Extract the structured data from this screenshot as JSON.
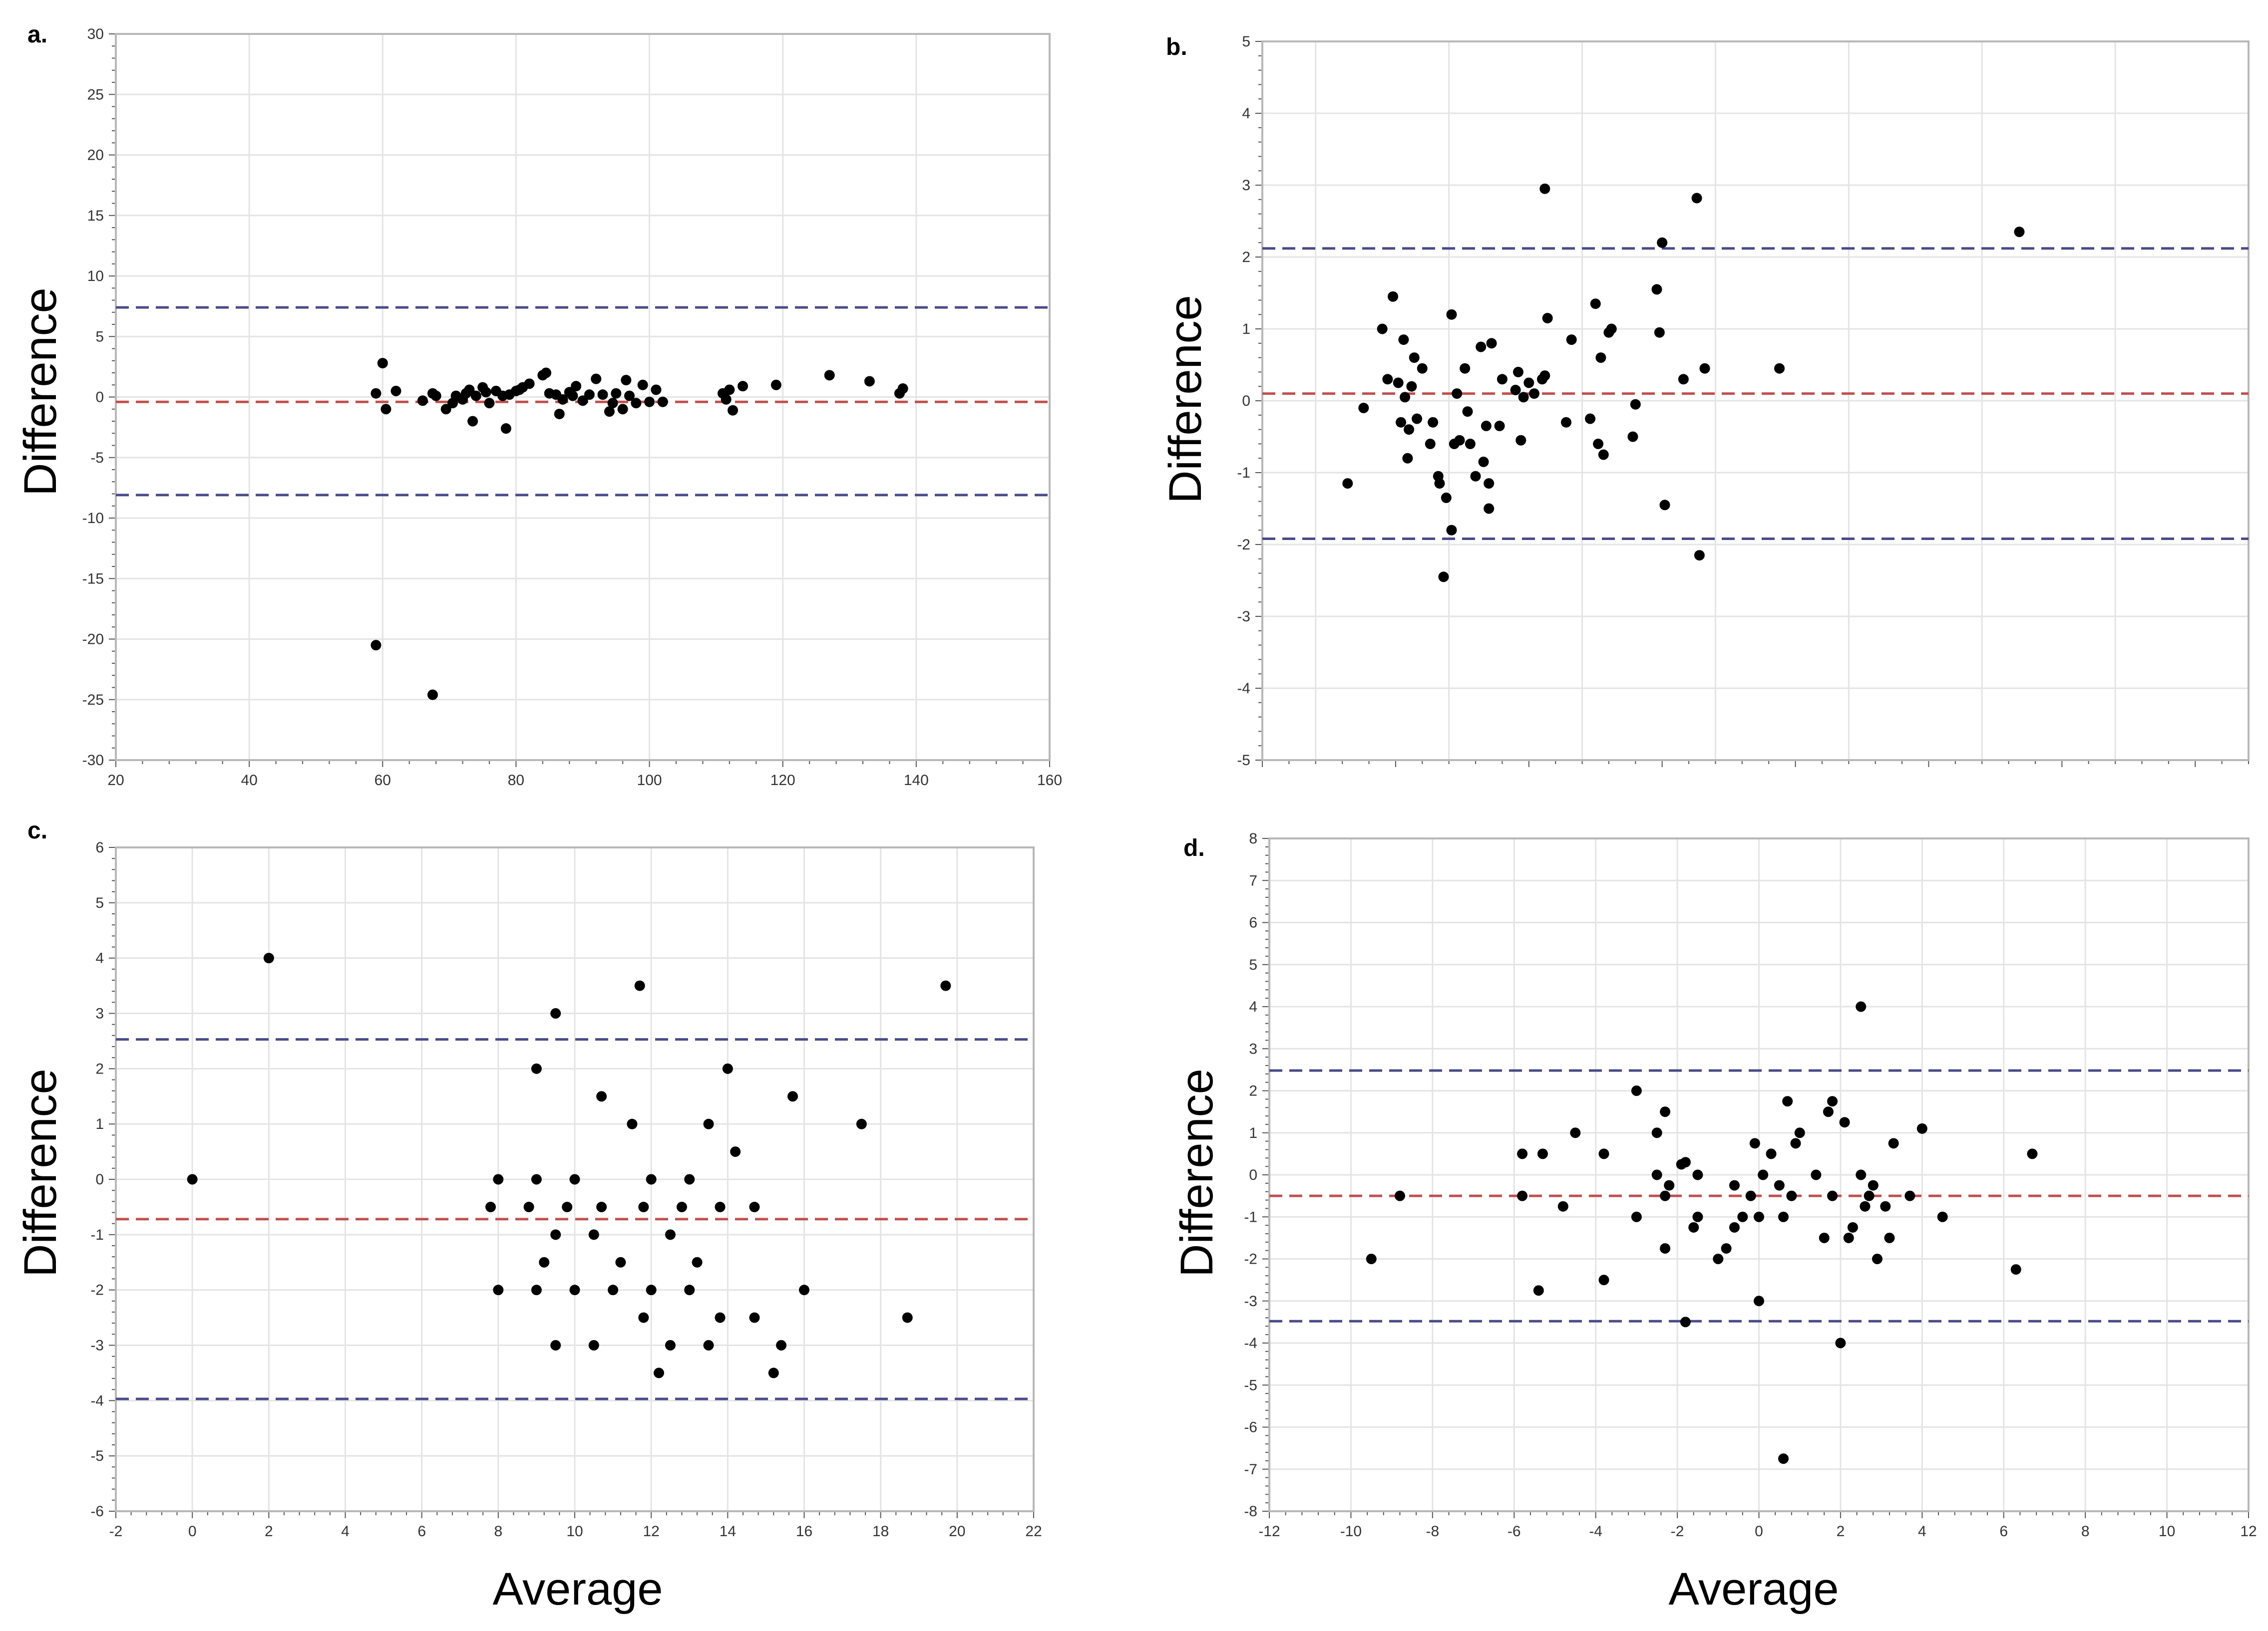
{
  "colors": {
    "points": "#000000",
    "mean_line": "#c0504d",
    "limit_line": "#4a4a8a",
    "grid": "#e4e4e4",
    "frame": "#b8b8b8"
  },
  "chart_data": [
    {
      "panel": "a.",
      "type": "scatter",
      "title": "",
      "xlabel": "",
      "ylabel": "Difference",
      "xlim": [
        20,
        160
      ],
      "ylim": [
        -30,
        30
      ],
      "xticks": [
        20,
        40,
        60,
        80,
        100,
        120,
        140,
        160
      ],
      "yticks": [
        -30,
        -25,
        -20,
        -15,
        -10,
        -5,
        0,
        5,
        10,
        15,
        20,
        25,
        30
      ],
      "grid": true,
      "lines": {
        "upper": 7.4,
        "mean": -0.4,
        "lower": -8.1
      },
      "points": [
        [
          59,
          0.3
        ],
        [
          60,
          2.8
        ],
        [
          60.5,
          -1
        ],
        [
          62,
          0.5
        ],
        [
          66,
          -0.3
        ],
        [
          67.5,
          0.3
        ],
        [
          68,
          0.1
        ],
        [
          69.5,
          -1
        ],
        [
          70.5,
          -0.5
        ],
        [
          71,
          0.1
        ],
        [
          72,
          -0.2
        ],
        [
          72.5,
          0.3
        ],
        [
          73,
          0.6
        ],
        [
          73.5,
          -2
        ],
        [
          74,
          0.1
        ],
        [
          75,
          0.8
        ],
        [
          75.5,
          0.4
        ],
        [
          76,
          -0.5
        ],
        [
          77,
          0.5
        ],
        [
          78,
          0.1
        ],
        [
          78.5,
          -2.6
        ],
        [
          79,
          0.2
        ],
        [
          80,
          0.5
        ],
        [
          80.5,
          0.6
        ],
        [
          81,
          0.8
        ],
        [
          82,
          1.1
        ],
        [
          84,
          1.8
        ],
        [
          84.5,
          2
        ],
        [
          85,
          0.3
        ],
        [
          86,
          0.2
        ],
        [
          86.5,
          -1.4
        ],
        [
          87,
          -0.2
        ],
        [
          88,
          0.4
        ],
        [
          88.5,
          0.1
        ],
        [
          89,
          0.9
        ],
        [
          90,
          -0.3
        ],
        [
          91,
          0.2
        ],
        [
          92,
          1.5
        ],
        [
          93,
          0.2
        ],
        [
          94,
          -1.2
        ],
        [
          94.5,
          -0.5
        ],
        [
          95,
          0.3
        ],
        [
          96,
          -1
        ],
        [
          96.5,
          1.4
        ],
        [
          97,
          0.1
        ],
        [
          98,
          -0.5
        ],
        [
          99,
          1
        ],
        [
          100,
          -0.4
        ],
        [
          101,
          0.6
        ],
        [
          102,
          -0.4
        ],
        [
          111,
          0.3
        ],
        [
          111.5,
          -0.2
        ],
        [
          112,
          0.6
        ],
        [
          112.5,
          -1.1
        ],
        [
          114,
          0.9
        ],
        [
          119,
          1
        ],
        [
          127,
          1.8
        ],
        [
          133,
          1.3
        ],
        [
          137.5,
          0.3
        ],
        [
          138,
          0.7
        ],
        [
          59,
          -20.5
        ],
        [
          67.5,
          -24.6
        ]
      ]
    },
    {
      "panel": "b.",
      "type": "scatter",
      "title": "",
      "xlabel": "",
      "ylabel": "Difference",
      "xlim": [
        -2,
        35
      ],
      "ylim": [
        -5,
        5
      ],
      "xticks": [],
      "yticks": [
        -5,
        -4,
        -3,
        -2,
        -1,
        0,
        1,
        2,
        3,
        4,
        5
      ],
      "grid": true,
      "lines": {
        "upper": 2.12,
        "mean": 0.1,
        "lower": -1.92
      },
      "points": [
        [
          1.2,
          -1.15
        ],
        [
          1.8,
          -0.1
        ],
        [
          2.5,
          1
        ],
        [
          2.7,
          0.3
        ],
        [
          2.9,
          1.45
        ],
        [
          3.1,
          0.25
        ],
        [
          3.2,
          -0.3
        ],
        [
          3.3,
          0.85
        ],
        [
          3.35,
          0.05
        ],
        [
          3.45,
          -0.8
        ],
        [
          3.5,
          -0.4
        ],
        [
          3.6,
          0.2
        ],
        [
          3.7,
          0.6
        ],
        [
          3.8,
          -0.25
        ],
        [
          4.0,
          0.45
        ],
        [
          4.3,
          -0.6
        ],
        [
          4.4,
          -0.3
        ],
        [
          4.6,
          -1.05
        ],
        [
          4.65,
          -1.15
        ],
        [
          4.8,
          -2.45
        ],
        [
          4.9,
          -1.35
        ],
        [
          5.1,
          -1.8
        ],
        [
          5.1,
          1.2
        ],
        [
          5.2,
          -0.6
        ],
        [
          5.3,
          0.1
        ],
        [
          5.4,
          -0.55
        ],
        [
          5.6,
          0.45
        ],
        [
          5.7,
          -0.15
        ],
        [
          5.8,
          -0.6
        ],
        [
          6.0,
          -1.05
        ],
        [
          6.2,
          0.75
        ],
        [
          6.3,
          -0.85
        ],
        [
          6.4,
          -0.35
        ],
        [
          6.5,
          -1.15
        ],
        [
          6.5,
          -1.5
        ],
        [
          6.6,
          0.8
        ],
        [
          6.9,
          -0.35
        ],
        [
          7.0,
          0.3
        ],
        [
          7.5,
          0.15
        ],
        [
          7.6,
          0.4
        ],
        [
          7.7,
          -0.55
        ],
        [
          7.8,
          0.05
        ],
        [
          8.2,
          0.1
        ],
        [
          8.5,
          0.3
        ],
        [
          8.6,
          0.35
        ],
        [
          8.7,
          1.15
        ],
        [
          8.0,
          0.25
        ],
        [
          9.4,
          -0.3
        ],
        [
          9.6,
          0.85
        ],
        [
          10.3,
          -0.25
        ],
        [
          10.5,
          1.35
        ],
        [
          10.6,
          -0.6
        ],
        [
          10.7,
          0.6
        ],
        [
          10.8,
          -0.75
        ],
        [
          11.0,
          0.95
        ],
        [
          11.1,
          1.0
        ],
        [
          11.9,
          -0.5
        ],
        [
          12.0,
          -0.05
        ],
        [
          12.8,
          1.55
        ],
        [
          12.9,
          0.95
        ],
        [
          13.0,
          2.2
        ],
        [
          13.1,
          -1.45
        ],
        [
          13.8,
          0.3
        ],
        [
          14.3,
          2.82
        ],
        [
          14.4,
          -2.15
        ],
        [
          14.6,
          0.45
        ],
        [
          8.6,
          2.95
        ],
        [
          17.4,
          0.45
        ],
        [
          26.4,
          2.35
        ]
      ]
    },
    {
      "panel": "c.",
      "type": "scatter",
      "title": "",
      "xlabel": "Average",
      "ylabel": "Difference",
      "xlim": [
        -2,
        22
      ],
      "ylim": [
        -6,
        6
      ],
      "xticks": [
        -2,
        0,
        2,
        4,
        6,
        8,
        10,
        12,
        14,
        16,
        18,
        20,
        22
      ],
      "yticks": [
        -6,
        -5,
        -4,
        -3,
        -2,
        -1,
        0,
        1,
        2,
        3,
        4,
        5,
        6
      ],
      "grid": true,
      "lines": {
        "upper": 2.53,
        "mean": -0.72,
        "lower": -3.97
      },
      "points": [
        [
          0,
          0
        ],
        [
          2,
          4
        ],
        [
          7.8,
          -0.5
        ],
        [
          8,
          0
        ],
        [
          8,
          -2
        ],
        [
          8.8,
          -0.5
        ],
        [
          9,
          0
        ],
        [
          9,
          2
        ],
        [
          9,
          -2
        ],
        [
          9.2,
          -1.5
        ],
        [
          9.5,
          3
        ],
        [
          9.5,
          -1
        ],
        [
          9.5,
          -3
        ],
        [
          9.8,
          -0.5
        ],
        [
          10,
          0
        ],
        [
          10,
          -2
        ],
        [
          10.5,
          -1
        ],
        [
          10.5,
          -3
        ],
        [
          10.7,
          -0.5
        ],
        [
          10.7,
          1.5
        ],
        [
          11,
          -2
        ],
        [
          11.2,
          -1.5
        ],
        [
          11.5,
          1
        ],
        [
          11.7,
          3.5
        ],
        [
          11.8,
          -0.5
        ],
        [
          11.8,
          -2.5
        ],
        [
          12,
          0
        ],
        [
          12,
          -2
        ],
        [
          12.2,
          -3.5
        ],
        [
          12.5,
          -1
        ],
        [
          12.5,
          -3
        ],
        [
          12.8,
          -0.5
        ],
        [
          13,
          0
        ],
        [
          13,
          -2
        ],
        [
          13.2,
          -1.5
        ],
        [
          13.5,
          1
        ],
        [
          13.5,
          -3
        ],
        [
          13.8,
          -0.5
        ],
        [
          13.8,
          -2.5
        ],
        [
          14,
          2
        ],
        [
          14.2,
          0.5
        ],
        [
          14.7,
          -0.5
        ],
        [
          14.7,
          -2.5
        ],
        [
          15.2,
          -3.5
        ],
        [
          15.4,
          -3
        ],
        [
          15.7,
          1.5
        ],
        [
          16,
          -2
        ],
        [
          17.5,
          1
        ],
        [
          18.7,
          -2.5
        ],
        [
          19.7,
          3.5
        ]
      ]
    },
    {
      "panel": "d.",
      "type": "scatter",
      "title": "",
      "xlabel": "Average",
      "ylabel": "Difference",
      "xlim": [
        -12,
        12
      ],
      "ylim": [
        -8,
        8
      ],
      "xticks": [
        -12,
        -10,
        -8,
        -6,
        -4,
        -2,
        0,
        2,
        4,
        6,
        8,
        10,
        12
      ],
      "yticks": [
        -8,
        -7,
        -6,
        -5,
        -4,
        -3,
        -2,
        -1,
        0,
        1,
        2,
        3,
        4,
        5,
        6,
        7,
        8
      ],
      "grid": true,
      "lines": {
        "upper": 2.48,
        "mean": -0.5,
        "lower": -3.48
      },
      "points": [
        [
          -9.5,
          -2
        ],
        [
          -8.8,
          -0.5
        ],
        [
          -5.8,
          0.5
        ],
        [
          -5.8,
          -0.5
        ],
        [
          -5.3,
          0.5
        ],
        [
          -5.4,
          -2.75
        ],
        [
          -4.8,
          -0.75
        ],
        [
          -4.5,
          1
        ],
        [
          -3.8,
          0.5
        ],
        [
          -3.8,
          -2.5
        ],
        [
          -3,
          2
        ],
        [
          -3,
          -1
        ],
        [
          -2.5,
          1
        ],
        [
          -2.5,
          0
        ],
        [
          -2.3,
          1.5
        ],
        [
          -2.3,
          -1.75
        ],
        [
          -2.2,
          -0.25
        ],
        [
          -2.3,
          -0.5
        ],
        [
          -1.9,
          0.25
        ],
        [
          -1.8,
          0.3
        ],
        [
          -1.8,
          -3.5
        ],
        [
          -1.5,
          0
        ],
        [
          -1.5,
          -1
        ],
        [
          -1.6,
          -1.25
        ],
        [
          -1,
          -2
        ],
        [
          -0.8,
          -1.75
        ],
        [
          -0.6,
          -0.25
        ],
        [
          -0.6,
          -1.25
        ],
        [
          -0.4,
          -1
        ],
        [
          -0.2,
          -0.5
        ],
        [
          -0.1,
          0.75
        ],
        [
          0,
          -3
        ],
        [
          0.1,
          0
        ],
        [
          0,
          -1
        ],
        [
          0.3,
          0.5
        ],
        [
          0.5,
          -0.25
        ],
        [
          0.6,
          -1
        ],
        [
          0.8,
          -0.5
        ],
        [
          0.7,
          1.75
        ],
        [
          0.9,
          0.75
        ],
        [
          1,
          1
        ],
        [
          0.6,
          -6.75
        ],
        [
          1.4,
          0
        ],
        [
          1.6,
          -1.5
        ],
        [
          1.7,
          1.5
        ],
        [
          1.8,
          1.75
        ],
        [
          1.8,
          -0.5
        ],
        [
          2,
          -4
        ],
        [
          2.1,
          1.25
        ],
        [
          2.2,
          -1.5
        ],
        [
          2.3,
          -1.25
        ],
        [
          2.5,
          4
        ],
        [
          2.5,
          0
        ],
        [
          2.6,
          -0.75
        ],
        [
          2.7,
          -0.5
        ],
        [
          2.8,
          -0.25
        ],
        [
          2.9,
          -2
        ],
        [
          3.1,
          -0.75
        ],
        [
          3.2,
          -1.5
        ],
        [
          3.3,
          0.75
        ],
        [
          3.7,
          -0.5
        ],
        [
          4,
          1.1
        ],
        [
          4.5,
          -1
        ],
        [
          6.3,
          -2.25
        ],
        [
          6.7,
          0.5
        ]
      ]
    }
  ]
}
